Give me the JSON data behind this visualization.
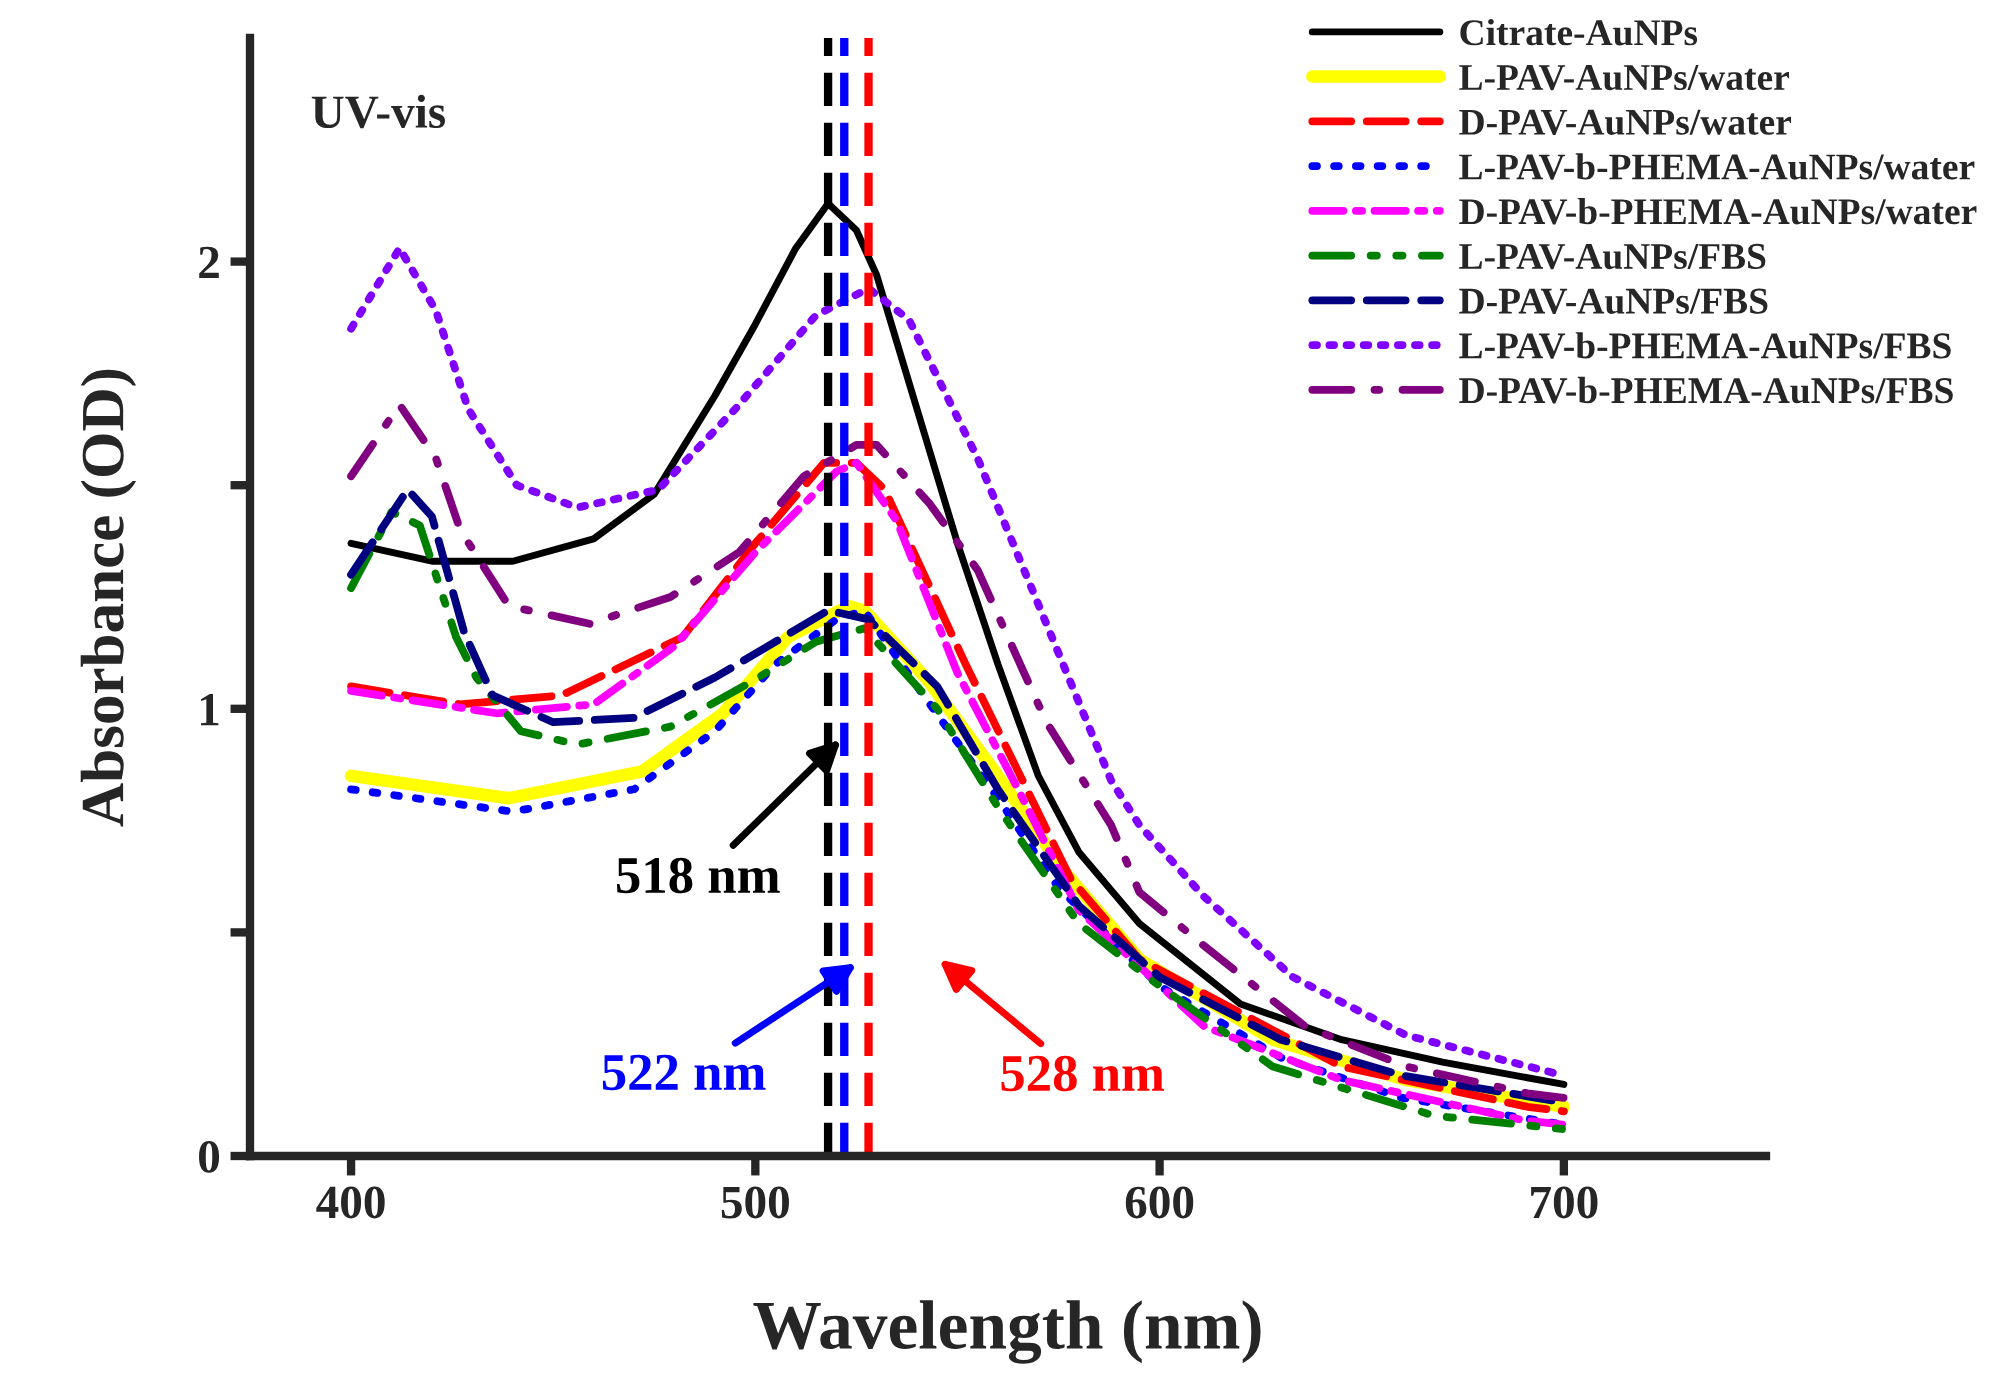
{
  "chart_data": {
    "type": "line",
    "xlabel": "Wavelength (nm)",
    "ylabel": "Absorbance (OD)",
    "xlim": [
      375,
      750
    ],
    "xticks": [
      400,
      500,
      600,
      700
    ],
    "ylim": [
      0,
      2.5
    ],
    "yticks": [
      0,
      {
        "value": 0.5,
        "label": null
      },
      1,
      {
        "value": 1.5,
        "label": null
      },
      2
    ],
    "grid": false,
    "legend": "top right",
    "marker": "none",
    "annotations": [
      "UV-vis"
    ],
    "ref_lines": [
      {
        "axis": "x",
        "value": 518,
        "label": "518 nm",
        "color": "#000000",
        "line_style": "dashed"
      },
      {
        "axis": "x",
        "value": 522,
        "label": "522 nm",
        "color": "#0000ff",
        "line_style": "dashed"
      },
      {
        "axis": "x",
        "value": 528,
        "label": "528 nm",
        "color": "#ff0000",
        "line_style": "dashed"
      }
    ],
    "series": [
      {
        "name": "Citrate-AuNPs",
        "color": "#000000",
        "line_style": "solid",
        "x": [
          400,
          420,
          440,
          460,
          475,
          490,
          500,
          510,
          518,
          525,
          530,
          540,
          550,
          560,
          570,
          580,
          595,
          620,
          645,
          670,
          700
        ],
        "values": [
          1.37,
          1.33,
          1.33,
          1.38,
          1.48,
          1.7,
          1.86,
          2.03,
          2.13,
          2.07,
          1.97,
          1.67,
          1.37,
          1.1,
          0.85,
          0.68,
          0.52,
          0.34,
          0.26,
          0.21,
          0.16
        ]
      },
      {
        "name": "L-PAV-AuNPs/water",
        "color": "#ffff00",
        "line_style": "solid",
        "x": [
          400,
          439,
          472,
          492,
          508,
          523,
          527,
          543,
          560,
          577,
          595,
          628,
          661,
          700
        ],
        "values": [
          0.85,
          0.8,
          0.86,
          0.99,
          1.16,
          1.23,
          1.22,
          1.06,
          0.85,
          0.63,
          0.44,
          0.26,
          0.17,
          0.11
        ]
      },
      {
        "name": "D-PAV-AuNPs/water",
        "color": "#ff0000",
        "line_style": "dashed",
        "x": [
          400,
          427,
          452,
          482,
          500,
          517,
          525,
          532,
          552,
          565,
          578,
          595,
          645,
          691,
          700
        ],
        "values": [
          1.05,
          1.01,
          1.03,
          1.16,
          1.37,
          1.55,
          1.55,
          1.49,
          1.1,
          0.86,
          0.62,
          0.44,
          0.2,
          0.11,
          0.1
        ]
      },
      {
        "name": "L-PAV-b-PHEMA-AuNPs/water",
        "color": "#0000ff",
        "line_style": "dotted_sparse",
        "x": [
          400,
          440,
          470,
          490,
          505,
          520,
          527,
          540,
          560,
          575,
          600,
          630,
          660,
          700
        ],
        "values": [
          0.82,
          0.77,
          0.82,
          0.95,
          1.1,
          1.2,
          1.22,
          1.05,
          0.8,
          0.6,
          0.38,
          0.22,
          0.13,
          0.07
        ]
      },
      {
        "name": "D-PAV-b-PHEMA-AuNPs/water",
        "color": "#ff00ff",
        "line_style": "dashdot",
        "x": [
          400,
          436,
          460,
          480,
          500,
          520,
          525,
          535,
          550,
          565,
          580,
          611,
          645,
          690,
          700
        ],
        "values": [
          1.04,
          0.99,
          1.01,
          1.14,
          1.35,
          1.53,
          1.55,
          1.42,
          1.08,
          0.82,
          0.55,
          0.29,
          0.17,
          0.08,
          0.07
        ]
      },
      {
        "name": "L-PAV-AuNPs/FBS",
        "color": "#008000",
        "line_style": "dashdotdot",
        "x": [
          400,
          410,
          417,
          426,
          431,
          442,
          456,
          479,
          499,
          515,
          527,
          545,
          560,
          580,
          600,
          628,
          668,
          700
        ],
        "values": [
          1.27,
          1.44,
          1.41,
          1.16,
          1.07,
          0.95,
          0.92,
          0.96,
          1.06,
          1.15,
          1.18,
          1.0,
          0.78,
          0.52,
          0.38,
          0.2,
          0.09,
          0.06
        ]
      },
      {
        "name": "D-PAV-AuNPs/FBS",
        "color": "#000080",
        "line_style": "dashed",
        "x": [
          400,
          414,
          420,
          428,
          435,
          450,
          470,
          490,
          505,
          518,
          528,
          545,
          560,
          580,
          600,
          630,
          660,
          700
        ],
        "values": [
          1.3,
          1.49,
          1.43,
          1.17,
          1.03,
          0.97,
          0.98,
          1.07,
          1.15,
          1.22,
          1.2,
          1.05,
          0.82,
          0.56,
          0.4,
          0.26,
          0.18,
          0.12
        ]
      },
      {
        "name": "L-PAV-b-PHEMA-AuNPs/FBS",
        "color": "#8000ff",
        "line_style": "dotted",
        "x": [
          400,
          412,
          421,
          429,
          441,
          456,
          476,
          495,
          515,
          528,
          538,
          555,
          572,
          588,
          595,
          611,
          633,
          661,
          700
        ],
        "values": [
          1.85,
          2.03,
          1.89,
          1.67,
          1.5,
          1.45,
          1.49,
          1.67,
          1.88,
          1.94,
          1.87,
          1.56,
          1.19,
          0.84,
          0.74,
          0.58,
          0.4,
          0.27,
          0.18
        ]
      },
      {
        "name": "D-PAV-b-PHEMA-AuNPs/FBS",
        "color": "#800080",
        "line_style": "dashdot_long",
        "x": [
          400,
          412,
          421,
          427,
          439,
          459,
          479,
          496,
          512,
          525,
          530,
          543,
          555,
          572,
          588,
          595,
          611,
          636,
          661,
          691,
          700
        ],
        "values": [
          1.52,
          1.68,
          1.56,
          1.4,
          1.23,
          1.19,
          1.25,
          1.35,
          1.52,
          1.59,
          1.59,
          1.46,
          1.31,
          0.97,
          0.74,
          0.59,
          0.47,
          0.29,
          0.2,
          0.14,
          0.13
        ]
      }
    ]
  }
}
